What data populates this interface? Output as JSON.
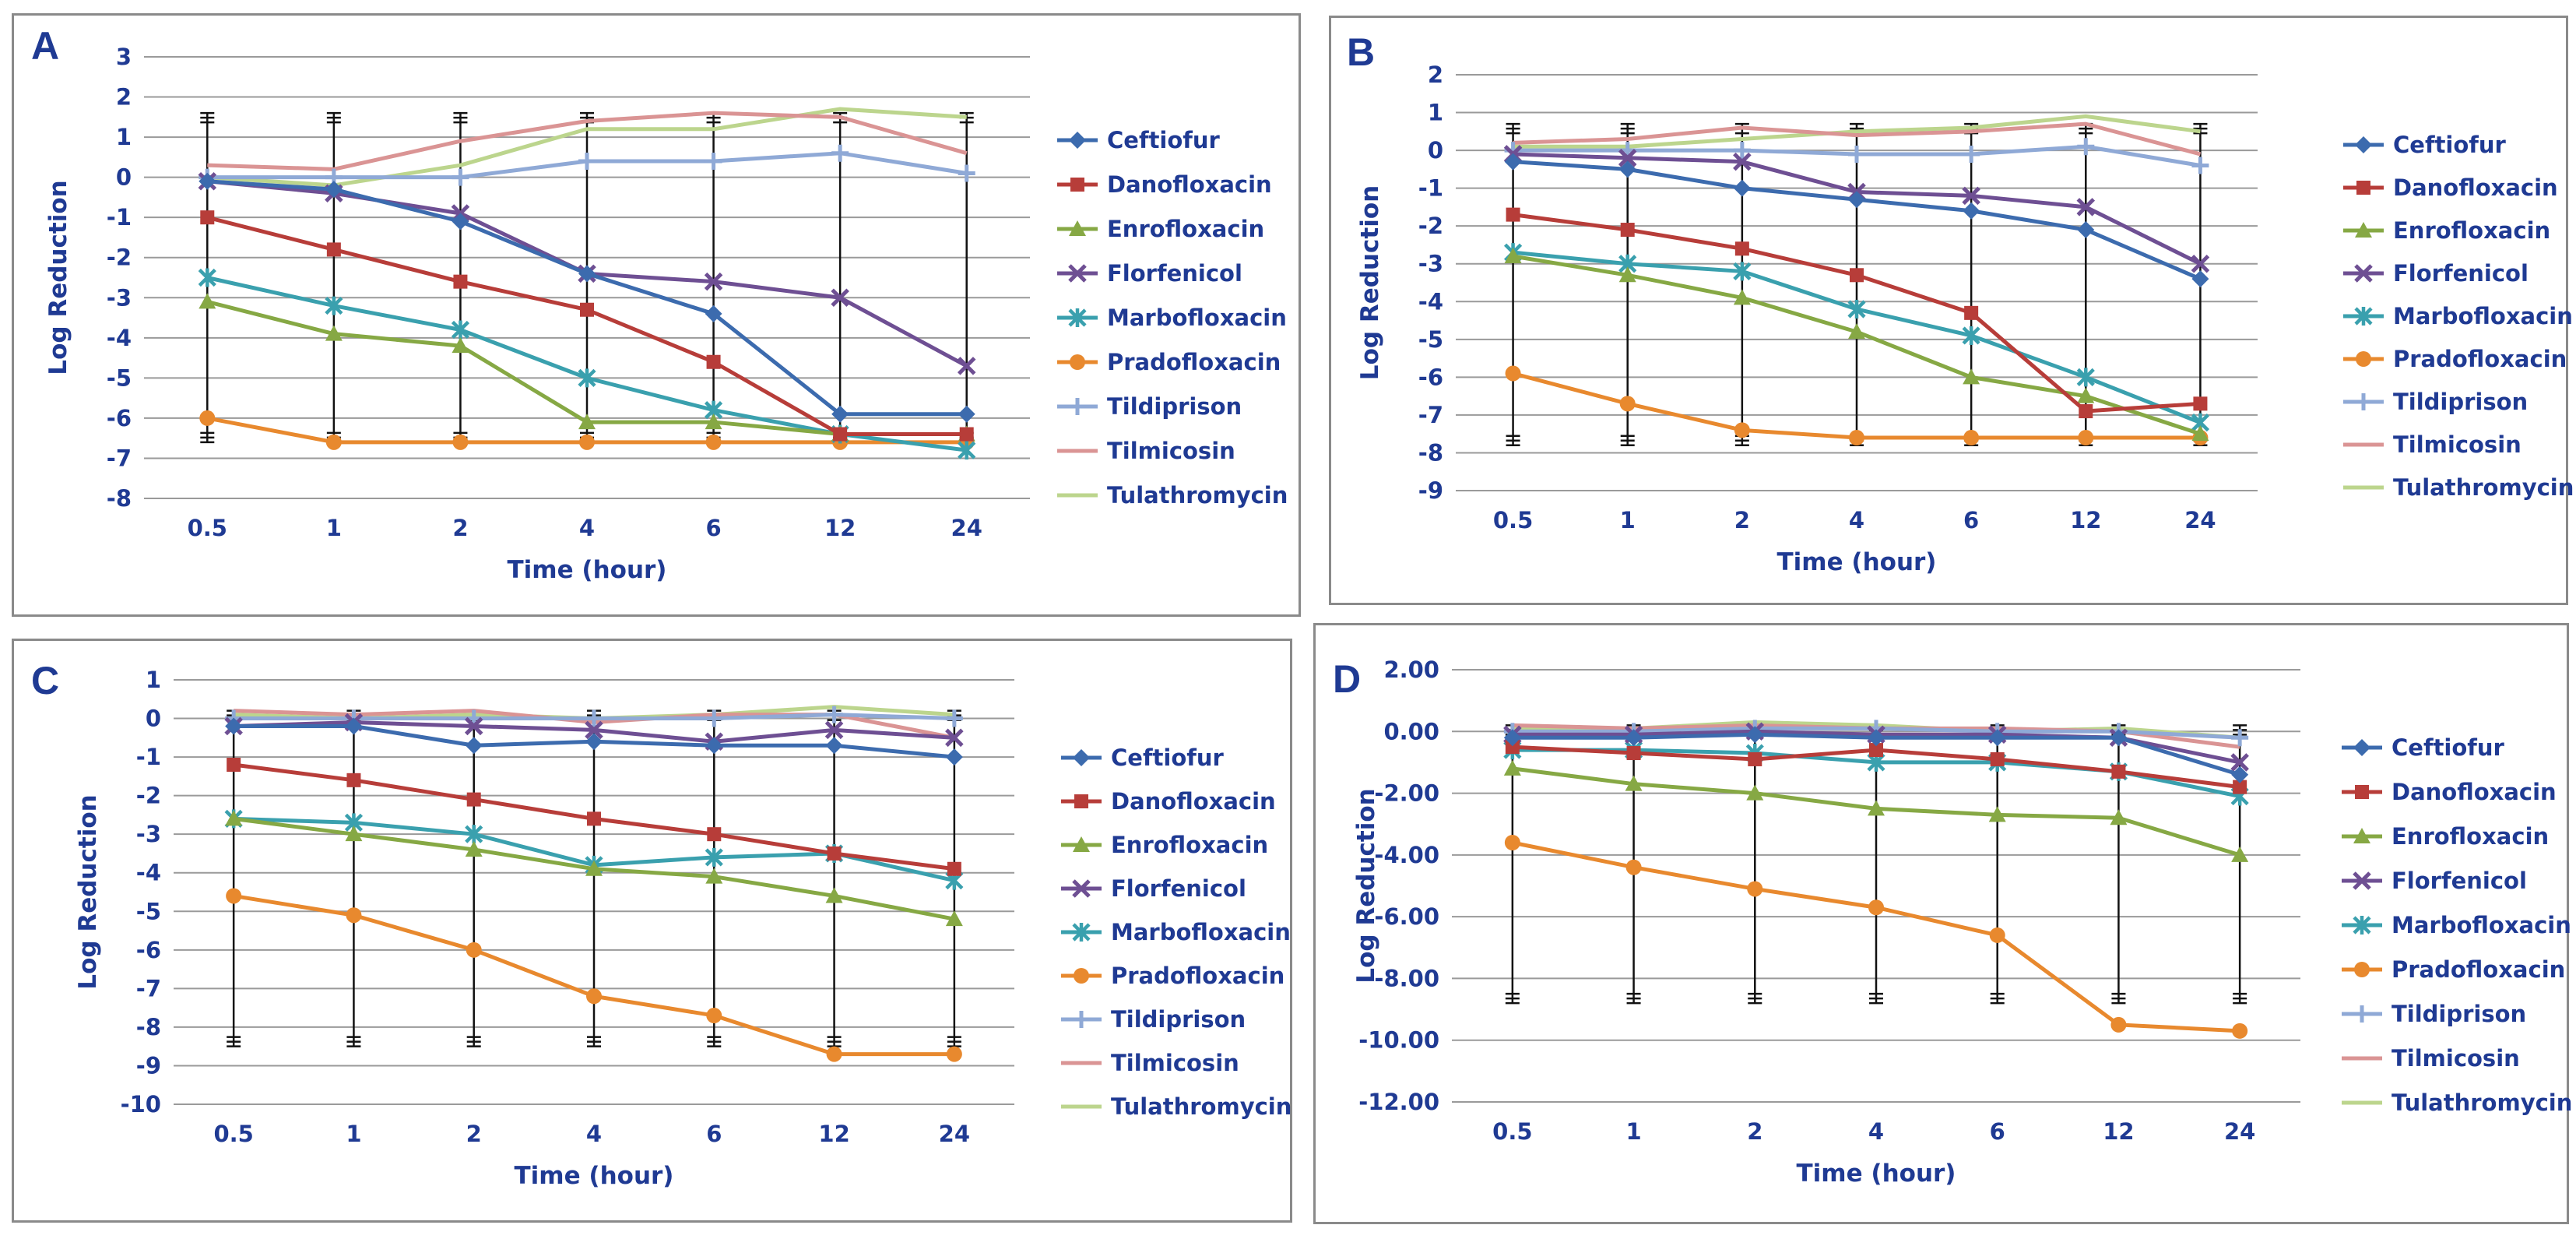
{
  "figure": {
    "series_colors": {
      "Ceftiofur": "#3C6BAE",
      "Danofloxacin": "#B73D39",
      "Enrofloxacin": "#86A844",
      "Florfenicol": "#6E4F93",
      "Marbofloxacin": "#3AA0AE",
      "Pradofloxacin": "#E8892E",
      "Tildiprison": "#8FA9D6",
      "Tilmicosin": "#DA9494",
      "Tulathromycin": "#BCD58D"
    },
    "series_markers": {
      "Ceftiofur": "diamond",
      "Danofloxacin": "square",
      "Enrofloxacin": "triangle",
      "Florfenicol": "x",
      "Marbofloxacin": "asterisk",
      "Pradofloxacin": "circle",
      "Tildiprison": "plus",
      "Tilmicosin": "none",
      "Tulathromycin": "none"
    }
  },
  "chart_data": [
    {
      "panel": "A",
      "type": "line",
      "categories": [
        "0.5",
        "1",
        "2",
        "4",
        "6",
        "12",
        "24"
      ],
      "xlabel": "Time (hour)",
      "ylabel": "Log Reduction",
      "ylim": [
        -8,
        3
      ],
      "ystep": 1,
      "ytick_decimals": 0,
      "error_bars": {
        "upper": 1.6,
        "lower": -6.6
      },
      "series": [
        {
          "name": "Ceftiofur",
          "values": [
            -0.1,
            -0.3,
            -1.1,
            -2.4,
            -3.4,
            -5.9,
            -5.9
          ]
        },
        {
          "name": "Danofloxacin",
          "values": [
            -1.0,
            -1.8,
            -2.6,
            -3.3,
            -4.6,
            -6.4,
            -6.4
          ]
        },
        {
          "name": "Enrofloxacin",
          "values": [
            -3.1,
            -3.9,
            -4.2,
            -6.1,
            -6.1,
            -6.4,
            -6.4
          ]
        },
        {
          "name": "Florfenicol",
          "values": [
            -0.1,
            -0.4,
            -0.9,
            -2.4,
            -2.6,
            -3.0,
            -4.7
          ]
        },
        {
          "name": "Marbofloxacin",
          "values": [
            -2.5,
            -3.2,
            -3.8,
            -5.0,
            -5.8,
            -6.4,
            -6.8
          ]
        },
        {
          "name": "Pradofloxacin",
          "values": [
            -6.0,
            -6.6,
            -6.6,
            -6.6,
            -6.6,
            -6.6,
            -6.6
          ]
        },
        {
          "name": "Tildiprison",
          "values": [
            0.0,
            0.0,
            0.0,
            0.4,
            0.4,
            0.6,
            0.1
          ]
        },
        {
          "name": "Tilmicosin",
          "values": [
            0.3,
            0.2,
            0.9,
            1.4,
            1.6,
            1.5,
            0.6
          ]
        },
        {
          "name": "Tulathromycin",
          "values": [
            0.0,
            -0.2,
            0.3,
            1.2,
            1.2,
            1.7,
            1.5
          ]
        }
      ]
    },
    {
      "panel": "B",
      "type": "line",
      "categories": [
        "0.5",
        "1",
        "2",
        "4",
        "6",
        "12",
        "24"
      ],
      "xlabel": "Time (hour)",
      "ylabel": "Log Reduction",
      "ylim": [
        -9,
        2
      ],
      "ystep": 1,
      "ytick_decimals": 0,
      "error_bars": {
        "upper": 0.7,
        "lower": -7.8
      },
      "series": [
        {
          "name": "Ceftiofur",
          "values": [
            -0.3,
            -0.5,
            -1.0,
            -1.3,
            -1.6,
            -2.1,
            -3.4
          ]
        },
        {
          "name": "Danofloxacin",
          "values": [
            -1.7,
            -2.1,
            -2.6,
            -3.3,
            -4.3,
            -6.9,
            -6.7
          ]
        },
        {
          "name": "Enrofloxacin",
          "values": [
            -2.8,
            -3.3,
            -3.9,
            -4.8,
            -6.0,
            -6.5,
            -7.5
          ]
        },
        {
          "name": "Florfenicol",
          "values": [
            -0.1,
            -0.2,
            -0.3,
            -1.1,
            -1.2,
            -1.5,
            -3.0
          ]
        },
        {
          "name": "Marbofloxacin",
          "values": [
            -2.7,
            -3.0,
            -3.2,
            -4.2,
            -4.9,
            -6.0,
            -7.2
          ]
        },
        {
          "name": "Pradofloxacin",
          "values": [
            -5.9,
            -6.7,
            -7.4,
            -7.6,
            -7.6,
            -7.6,
            -7.6
          ]
        },
        {
          "name": "Tildiprison",
          "values": [
            0.0,
            0.0,
            0.0,
            -0.1,
            -0.1,
            0.1,
            -0.4
          ]
        },
        {
          "name": "Tilmicosin",
          "values": [
            0.2,
            0.3,
            0.6,
            0.4,
            0.5,
            0.7,
            -0.1
          ]
        },
        {
          "name": "Tulathromycin",
          "values": [
            0.1,
            0.1,
            0.3,
            0.5,
            0.6,
            0.9,
            0.5
          ]
        }
      ]
    },
    {
      "panel": "C",
      "type": "line",
      "categories": [
        "0.5",
        "1",
        "2",
        "4",
        "6",
        "12",
        "24"
      ],
      "xlabel": "Time (hour)",
      "ylabel": "Log Reduction",
      "ylim": [
        -10,
        1
      ],
      "ystep": 1,
      "ytick_decimals": 0,
      "error_bars": {
        "upper": 0.2,
        "lower": -8.5
      },
      "series": [
        {
          "name": "Ceftiofur",
          "values": [
            -0.2,
            -0.2,
            -0.7,
            -0.6,
            -0.7,
            -0.7,
            -1.0
          ]
        },
        {
          "name": "Danofloxacin",
          "values": [
            -1.2,
            -1.6,
            -2.1,
            -2.6,
            -3.0,
            -3.5,
            -3.9
          ]
        },
        {
          "name": "Enrofloxacin",
          "values": [
            -2.6,
            -3.0,
            -3.4,
            -3.9,
            -4.1,
            -4.6,
            -5.2
          ]
        },
        {
          "name": "Florfenicol",
          "values": [
            -0.2,
            -0.1,
            -0.2,
            -0.3,
            -0.6,
            -0.3,
            -0.5
          ]
        },
        {
          "name": "Marbofloxacin",
          "values": [
            -2.6,
            -2.7,
            -3.0,
            -3.8,
            -3.6,
            -3.5,
            -4.2
          ]
        },
        {
          "name": "Pradofloxacin",
          "values": [
            -4.6,
            -5.1,
            -6.0,
            -7.2,
            -7.7,
            -8.7,
            -8.7
          ]
        },
        {
          "name": "Tildiprison",
          "values": [
            0.0,
            0.0,
            0.0,
            0.0,
            0.0,
            0.1,
            0.0
          ]
        },
        {
          "name": "Tilmicosin",
          "values": [
            0.2,
            0.1,
            0.2,
            -0.1,
            0.1,
            0.1,
            -0.5
          ]
        },
        {
          "name": "Tulathromycin",
          "values": [
            0.1,
            0.0,
            0.1,
            0.0,
            0.1,
            0.3,
            0.1
          ]
        }
      ]
    },
    {
      "panel": "D",
      "type": "line",
      "categories": [
        "0.5",
        "1",
        "2",
        "4",
        "6",
        "12",
        "24"
      ],
      "xlabel": "Time (hour)",
      "ylabel": "Log Reduction",
      "ylim": [
        -12,
        2
      ],
      "ystep": 2,
      "ytick_decimals": 2,
      "error_bars": {
        "upper": 0.2,
        "lower": -8.8
      },
      "series": [
        {
          "name": "Ceftiofur",
          "values": [
            -0.2,
            -0.2,
            -0.1,
            -0.2,
            -0.2,
            -0.2,
            -1.4
          ]
        },
        {
          "name": "Danofloxacin",
          "values": [
            -0.5,
            -0.7,
            -0.9,
            -0.6,
            -0.9,
            -1.3,
            -1.8
          ]
        },
        {
          "name": "Enrofloxacin",
          "values": [
            -1.2,
            -1.7,
            -2.0,
            -2.5,
            -2.7,
            -2.8,
            -4.0
          ]
        },
        {
          "name": "Florfenicol",
          "values": [
            -0.1,
            -0.1,
            0.0,
            -0.1,
            -0.1,
            -0.2,
            -1.0
          ]
        },
        {
          "name": "Marbofloxacin",
          "values": [
            -0.6,
            -0.6,
            -0.7,
            -1.0,
            -1.0,
            -1.3,
            -2.1
          ]
        },
        {
          "name": "Pradofloxacin",
          "values": [
            -3.6,
            -4.4,
            -5.1,
            -5.7,
            -6.6,
            -9.5,
            -9.7
          ]
        },
        {
          "name": "Tildiprison",
          "values": [
            0.0,
            0.0,
            0.1,
            0.1,
            0.0,
            0.0,
            -0.2
          ]
        },
        {
          "name": "Tilmicosin",
          "values": [
            0.2,
            0.1,
            0.2,
            0.1,
            0.1,
            0.0,
            -0.5
          ]
        },
        {
          "name": "Tulathromycin",
          "values": [
            0.1,
            0.1,
            0.3,
            0.2,
            0.0,
            0.1,
            -0.2
          ]
        }
      ]
    }
  ]
}
